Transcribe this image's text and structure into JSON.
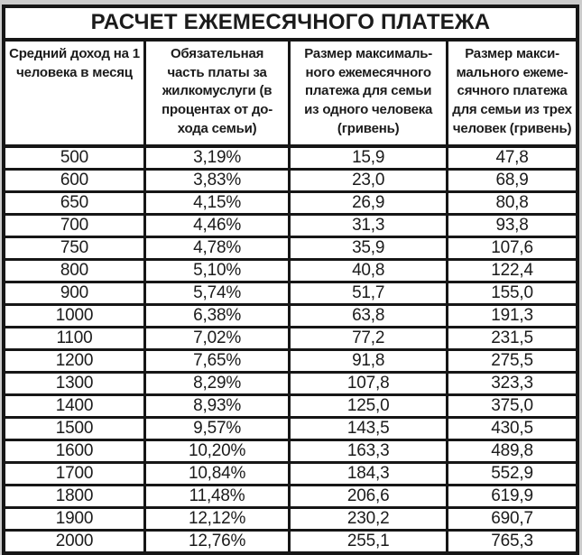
{
  "title": "РАСЧЕТ ЕЖЕМЕСЯЧНОГО ПЛАТЕЖА",
  "table": {
    "columns": [
      {
        "label": "Средний доход на 1\nчеловека в месяц"
      },
      {
        "label": "Обязательная\nчасть платы за\nжилкомуслуги (в\nпроцентах от до-\nхода семьи)"
      },
      {
        "label": "Размер максималь-\nного ежемесячного\nплатежа для семьи\nиз одного человека\n(гривень)"
      },
      {
        "label": "Размер макси-\nмального ежеме-\nсячного платежа\nдля семьи из трех\nчеловек (гривень)"
      }
    ],
    "rows": [
      [
        "500",
        "3,19%",
        "15,9",
        "47,8"
      ],
      [
        "600",
        "3,83%",
        "23,0",
        "68,9"
      ],
      [
        "650",
        "4,15%",
        "26,9",
        "80,8"
      ],
      [
        "700",
        "4,46%",
        "31,3",
        "93,8"
      ],
      [
        "750",
        "4,78%",
        "35,9",
        "107,6"
      ],
      [
        "800",
        "5,10%",
        "40,8",
        "122,4"
      ],
      [
        "900",
        "5,74%",
        "51,7",
        "155,0"
      ],
      [
        "1000",
        "6,38%",
        "63,8",
        "191,3"
      ],
      [
        "1100",
        "7,02%",
        "77,2",
        "231,5"
      ],
      [
        "1200",
        "7,65%",
        "91,8",
        "275,5"
      ],
      [
        "1300",
        "8,29%",
        "107,8",
        "323,3"
      ],
      [
        "1400",
        "8,93%",
        "125,0",
        "375,0"
      ],
      [
        "1500",
        "9,57%",
        "143,5",
        "430,5"
      ],
      [
        "1600",
        "10,20%",
        "163,3",
        "489,8"
      ],
      [
        "1700",
        "10,84%",
        "184,3",
        "552,9"
      ],
      [
        "1800",
        "11,48%",
        "206,6",
        "619,9"
      ],
      [
        "1900",
        "12,12%",
        "230,2",
        "690,7"
      ],
      [
        "2000",
        "12,76%",
        "255,1",
        "765,3"
      ]
    ],
    "cell_names": [
      "income-cell",
      "percent-cell",
      "payment-one-person-cell",
      "payment-three-persons-cell"
    ]
  },
  "colors": {
    "page_bg": "#cbcbcb",
    "cell_bg": "#ffffff",
    "border": "#161616",
    "text": "#1b1b1b"
  }
}
